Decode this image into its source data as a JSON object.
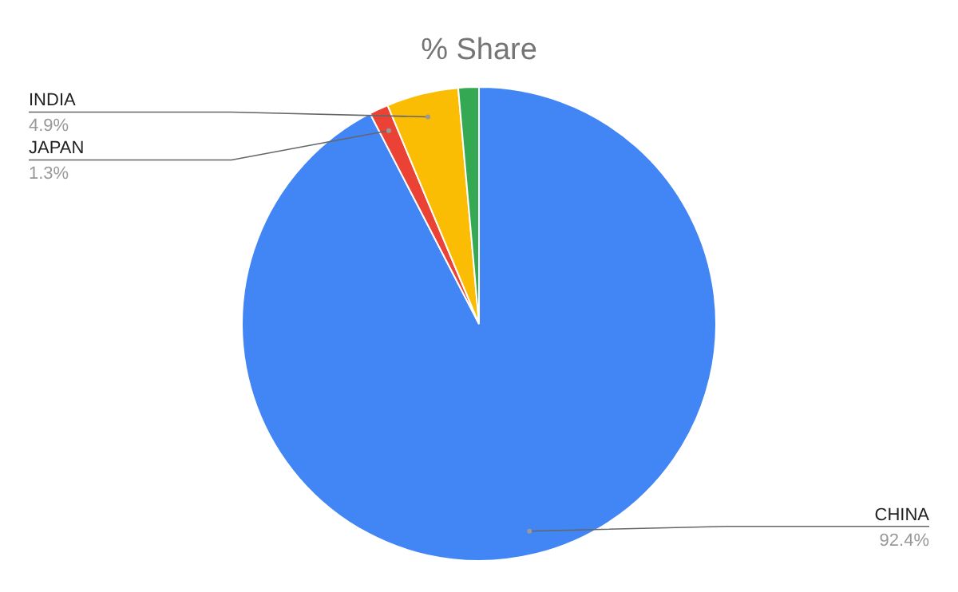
{
  "chart_data": {
    "type": "pie",
    "title": "% Share",
    "categories": [
      "CHINA",
      "JAPAN",
      "INDIA",
      null
    ],
    "values": [
      92.4,
      1.3,
      4.9,
      1.4
    ],
    "value_labels": [
      "92.4%",
      "1.3%",
      "4.9%",
      null
    ],
    "colors": [
      "#4285f4",
      "#ea4335",
      "#fbbc04",
      "#34a853"
    ],
    "legend": false
  }
}
